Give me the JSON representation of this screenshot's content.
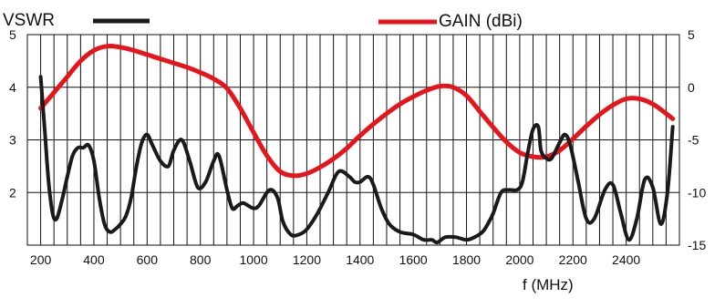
{
  "chart_data": {
    "type": "line",
    "xlabel": "f (MHz)",
    "ylabel_left": "",
    "ylabel_right": "",
    "xlim": [
      150,
      2600
    ],
    "ylim_left": [
      1.0,
      5.0
    ],
    "ylim_right": [
      -15,
      5
    ],
    "x_ticks": [
      "200",
      "400",
      "600",
      "800",
      "1000",
      "1200",
      "1400",
      "1600",
      "1800",
      "2000",
      "2200",
      "2400"
    ],
    "y_left_ticks": [
      "2",
      "3",
      "4",
      "5"
    ],
    "y_right_ticks": [
      "5",
      "0",
      "-5",
      "-10",
      "-15"
    ],
    "grid": "vertical-and-horizontal",
    "legend_position": "top",
    "colors": {
      "vswr": "#1a1a1a",
      "gain": "#e8141b",
      "grid": "#111111"
    },
    "series": [
      {
        "name": "VSWR",
        "axis": "left",
        "x": [
          200,
          215,
          230,
          245,
          260,
          280,
          300,
          320,
          340,
          360,
          380,
          400,
          420,
          440,
          460,
          480,
          500,
          520,
          540,
          560,
          580,
          600,
          620,
          650,
          680,
          700,
          730,
          760,
          790,
          820,
          850,
          870,
          900,
          920,
          940,
          960,
          980,
          1000,
          1020,
          1060,
          1090,
          1110,
          1140,
          1170,
          1200,
          1240,
          1280,
          1320,
          1360,
          1380,
          1400,
          1430,
          1450,
          1480,
          1510,
          1550,
          1600,
          1640,
          1670,
          1690,
          1720,
          1760,
          1800,
          1830,
          1860,
          1880,
          1900,
          1930,
          1960,
          1990,
          2010,
          2030,
          2050,
          2070,
          2080,
          2100,
          2120,
          2150,
          2170,
          2190,
          2220,
          2250,
          2280,
          2320,
          2350,
          2380,
          2410,
          2440,
          2470,
          2500,
          2530,
          2555,
          2575
        ],
        "values": [
          4.2,
          3.2,
          2.2,
          1.6,
          1.5,
          1.85,
          2.3,
          2.7,
          2.85,
          2.85,
          2.9,
          2.6,
          1.9,
          1.4,
          1.25,
          1.3,
          1.4,
          1.55,
          1.9,
          2.5,
          2.95,
          3.1,
          2.9,
          2.6,
          2.5,
          2.8,
          3.0,
          2.6,
          2.1,
          2.2,
          2.6,
          2.7,
          2.05,
          1.7,
          1.75,
          1.8,
          1.75,
          1.7,
          1.75,
          2.05,
          1.9,
          1.45,
          1.2,
          1.2,
          1.3,
          1.6,
          2.0,
          2.4,
          2.3,
          2.2,
          2.2,
          2.3,
          2.15,
          1.7,
          1.4,
          1.25,
          1.2,
          1.1,
          1.1,
          1.05,
          1.15,
          1.15,
          1.1,
          1.15,
          1.25,
          1.4,
          1.6,
          2.0,
          2.05,
          2.05,
          2.2,
          2.75,
          3.2,
          3.25,
          2.8,
          2.65,
          2.65,
          2.95,
          3.1,
          2.9,
          2.2,
          1.5,
          1.5,
          2.05,
          2.15,
          1.6,
          1.1,
          1.5,
          2.25,
          2.1,
          1.4,
          2.0,
          3.25
        ]
      },
      {
        "name": "GAIN (dBi)",
        "axis": "right",
        "x": [
          200,
          250,
          300,
          350,
          400,
          450,
          500,
          550,
          600,
          650,
          700,
          750,
          800,
          850,
          900,
          950,
          1000,
          1050,
          1100,
          1150,
          1200,
          1250,
          1300,
          1350,
          1400,
          1450,
          1500,
          1550,
          1600,
          1650,
          1700,
          1750,
          1800,
          1850,
          1900,
          1950,
          2000,
          2050,
          2100,
          2150,
          2200,
          2250,
          2300,
          2350,
          2400,
          2450,
          2500,
          2550,
          2575
        ],
        "values": [
          -2.0,
          -0.5,
          1.0,
          2.5,
          3.5,
          3.9,
          3.8,
          3.5,
          3.1,
          2.7,
          2.3,
          1.9,
          1.4,
          0.8,
          -0.1,
          -2.0,
          -4.3,
          -6.5,
          -8.0,
          -8.4,
          -8.2,
          -7.6,
          -6.8,
          -5.8,
          -4.6,
          -3.5,
          -2.5,
          -1.6,
          -0.9,
          -0.3,
          0.1,
          0.0,
          -0.8,
          -2.3,
          -3.8,
          -5.2,
          -6.2,
          -6.6,
          -6.6,
          -6.0,
          -4.9,
          -3.7,
          -2.6,
          -1.7,
          -1.1,
          -1.1,
          -1.6,
          -2.5,
          -3.0
        ]
      }
    ]
  }
}
